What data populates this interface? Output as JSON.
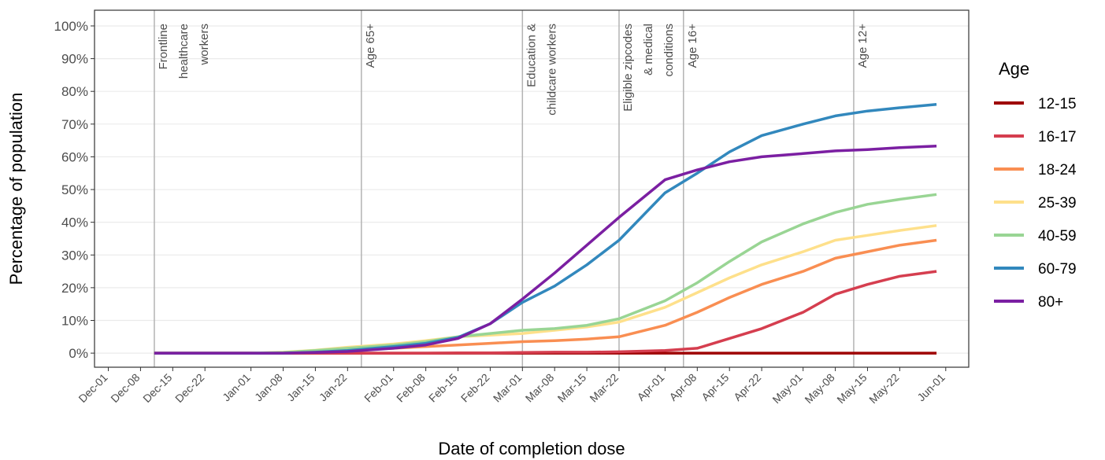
{
  "chart_data": {
    "type": "line",
    "x_label": "Date of completion dose",
    "y_label": "Percentage of population",
    "legend_title": "Age",
    "legend": "right",
    "grid": true,
    "x": [
      "Dec-11",
      "Dec-22",
      "Jan-01",
      "Jan-08",
      "Jan-15",
      "Jan-22",
      "Feb-01",
      "Feb-08",
      "Feb-15",
      "Feb-22",
      "Mar-01",
      "Mar-08",
      "Mar-15",
      "Mar-22",
      "Apr-01",
      "Apr-08",
      "Apr-15",
      "Apr-22",
      "May-01",
      "May-08",
      "May-15",
      "May-22",
      "May-30"
    ],
    "xlim": [
      "Nov-28",
      "Jun-06"
    ],
    "xticks": [
      "Dec-01",
      "Dec-08",
      "Dec-15",
      "Dec-22",
      "Jan-01",
      "Jan-08",
      "Jan-15",
      "Jan-22",
      "Feb-01",
      "Feb-08",
      "Feb-15",
      "Feb-22",
      "Mar-01",
      "Mar-08",
      "Mar-15",
      "Mar-22",
      "Apr-01",
      "Apr-08",
      "Apr-15",
      "Apr-22",
      "May-01",
      "May-08",
      "May-15",
      "May-22",
      "Jun-01"
    ],
    "ylim": [
      -4.3,
      104.8
    ],
    "yticks": [
      {
        "value": 0,
        "label": "0%"
      },
      {
        "value": 10,
        "label": "10%"
      },
      {
        "value": 20,
        "label": "20%"
      },
      {
        "value": 30,
        "label": "30%"
      },
      {
        "value": 40,
        "label": "40%"
      },
      {
        "value": 50,
        "label": "50%"
      },
      {
        "value": 60,
        "label": "60%"
      },
      {
        "value": 70,
        "label": "70%"
      },
      {
        "value": 80,
        "label": "80%"
      },
      {
        "value": 90,
        "label": "90%"
      },
      {
        "value": 100,
        "label": "100%"
      }
    ],
    "series": [
      {
        "name": "12-15",
        "color": "#9e0000",
        "values": [
          0,
          0,
          0,
          0,
          0,
          0,
          0,
          0,
          0,
          0,
          0,
          0,
          0,
          0,
          0,
          0,
          0,
          0,
          0,
          0,
          0,
          0,
          0
        ]
      },
      {
        "name": "16-17",
        "color": "#d53e4f",
        "values": [
          0,
          0,
          0,
          0,
          0,
          0,
          0,
          0,
          0.1,
          0.1,
          0.2,
          0.3,
          0.3,
          0.4,
          0.8,
          1.5,
          4.5,
          7.5,
          12.5,
          18,
          21,
          23.5,
          25
        ]
      },
      {
        "name": "18-24",
        "color": "#f98e52",
        "values": [
          0,
          0,
          0,
          0,
          0.5,
          1,
          1.5,
          2,
          2.5,
          3,
          3.5,
          3.8,
          4.3,
          5,
          8.5,
          12.5,
          17,
          21,
          25,
          29,
          31,
          33,
          34.5
        ]
      },
      {
        "name": "25-39",
        "color": "#fee08b",
        "values": [
          0,
          0,
          0,
          0.3,
          0.9,
          1.8,
          2.8,
          3.8,
          5,
          5.5,
          6,
          7,
          8,
          9.5,
          14,
          18.5,
          23,
          27,
          31,
          34.5,
          36,
          37.5,
          39
        ]
      },
      {
        "name": "40-59",
        "color": "#99d594",
        "values": [
          0,
          0,
          0,
          0.2,
          0.8,
          1.5,
          2.5,
          3.5,
          5,
          6,
          7,
          7.5,
          8.5,
          10.5,
          16,
          21.5,
          28,
          34,
          39.5,
          43,
          45.5,
          47,
          48.5
        ]
      },
      {
        "name": "60-79",
        "color": "#3288bd",
        "values": [
          0,
          0,
          0,
          0,
          0.3,
          0.8,
          2,
          3,
          4.8,
          9,
          15.5,
          20.5,
          27,
          34.5,
          49,
          55,
          61.5,
          66.5,
          70,
          72.5,
          74,
          75,
          76
        ]
      },
      {
        "name": "80+",
        "color": "#7b1fa2",
        "values": [
          0,
          0,
          0,
          0,
          0.2,
          0.5,
          1.5,
          2.5,
          4.5,
          9,
          16.5,
          24.5,
          33,
          41.5,
          53,
          56,
          58.5,
          60,
          61,
          61.8,
          62.2,
          62.8,
          63.3
        ]
      }
    ],
    "annotations": [
      {
        "x": "Dec-11",
        "lines": [
          "Frontline",
          "healthcare",
          "workers"
        ]
      },
      {
        "x": "Jan-25",
        "lines": [
          "Age 65+"
        ]
      },
      {
        "x": "Mar-01",
        "lines": [
          "Education &",
          "childcare workers"
        ]
      },
      {
        "x": "Mar-22",
        "lines": [
          "Eligible zipcodes",
          "& medical",
          "conditions"
        ]
      },
      {
        "x": "Apr-05",
        "lines": [
          "Age 16+"
        ]
      },
      {
        "x": "May-12",
        "lines": [
          "Age 12+"
        ]
      }
    ]
  }
}
